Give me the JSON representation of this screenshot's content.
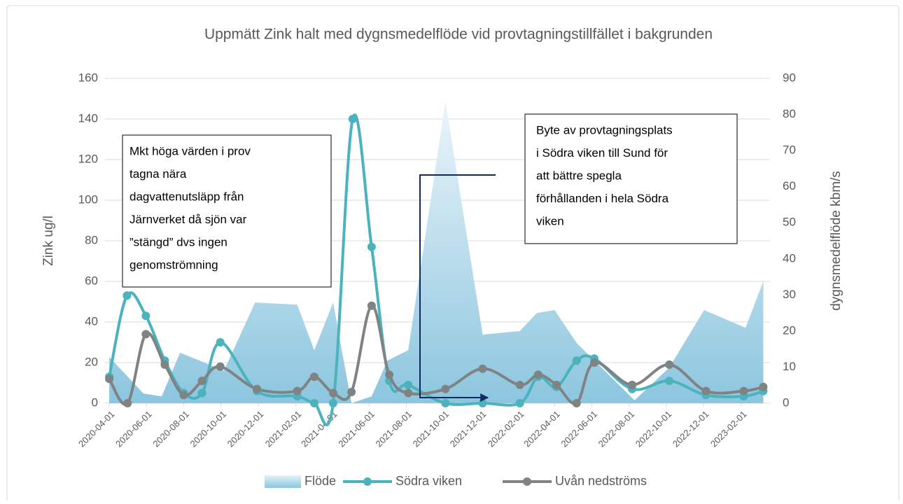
{
  "chart_data": {
    "type": "line",
    "title": "Uppmätt Zink halt med dygnsmedelflöde vid provtagningstillfället i bakgrunden",
    "ylabel": "Zink ug/l",
    "y2label": "dygnsmedelflöde kbm/s",
    "xlim": [
      "2020-03-25",
      "2023-03-20"
    ],
    "xticks": [
      "2020-04-01",
      "2020-06-01",
      "2020-08-01",
      "2020-10-01",
      "2020-12-01",
      "2021-02-01",
      "2021-04-01",
      "2021-06-01",
      "2021-08-01",
      "2021-10-01",
      "2021-12-01",
      "2022-02-01",
      "2022-04-01",
      "2022-06-01",
      "2022-08-01",
      "2022-10-01",
      "2022-12-01",
      "2023-02-01"
    ],
    "ylim": [
      0,
      160
    ],
    "yticks": [
      0,
      20,
      40,
      60,
      80,
      100,
      120,
      140,
      160
    ],
    "y2lim": [
      0,
      90
    ],
    "y2ticks": [
      0,
      10,
      20,
      30,
      40,
      50,
      60,
      70,
      80,
      90
    ],
    "grid": true,
    "legend": "bottom",
    "series": [
      {
        "name": "Flöde",
        "type": "area",
        "axis": "y2",
        "color": "#8cc6df",
        "x": [
          "2020-04-01",
          "2020-05-27",
          "2020-06-26",
          "2020-07-26",
          "2020-08-27",
          "2020-10-06",
          "2020-11-26",
          "2021-02-03",
          "2021-03-03",
          "2021-04-03",
          "2021-05-03",
          "2021-06-05",
          "2021-07-01",
          "2021-08-04",
          "2021-10-04",
          "2021-12-04",
          "2022-02-03",
          "2022-03-03",
          "2022-04-01",
          "2022-05-07",
          "2022-08-10",
          "2022-10-06",
          "2022-12-02",
          "2023-02-08",
          "2023-03-09"
        ],
        "values": [
          12.8,
          2.7,
          1.9,
          14.0,
          11.8,
          9.0,
          27.9,
          27.3,
          14.7,
          27.9,
          0,
          1.9,
          11.8,
          14.7,
          83.6,
          19.0,
          20.0,
          25.0,
          25.8,
          16.7,
          0.8,
          9.9,
          25.8,
          20.9,
          33.8
        ]
      },
      {
        "name": "Södra viken",
        "type": "line",
        "color": "#4bb3bd",
        "x": [
          "2020-04-01",
          "2020-04-30",
          "2020-05-31",
          "2020-07-01",
          "2020-08-01",
          "2020-08-31",
          "2020-09-30",
          "2020-11-29",
          "2021-02-03",
          "2021-03-03",
          "2021-04-03",
          "2021-05-05",
          "2021-06-05",
          "2021-07-04",
          "2021-08-04",
          "2021-10-04",
          "2021-12-04",
          "2022-02-03",
          "2022-03-05",
          "2022-04-04",
          "2022-05-07",
          "2022-06-05",
          "2022-08-06",
          "2022-10-06",
          "2022-12-05",
          "2023-02-05",
          "2023-03-09"
        ],
        "values": [
          13,
          53,
          43,
          21,
          5,
          5,
          30,
          6,
          3.4,
          0,
          0,
          140,
          77,
          11,
          9,
          0,
          0,
          0,
          13,
          8,
          21,
          22,
          7,
          11,
          4,
          3.4,
          6
        ]
      },
      {
        "name": "Uvån nedströms",
        "type": "line",
        "color": "#7f8383",
        "x": [
          "2020-04-01",
          "2020-05-01",
          "2020-05-31",
          "2020-07-01",
          "2020-08-01",
          "2020-08-31",
          "2020-09-30",
          "2020-11-29",
          "2021-02-03",
          "2021-03-03",
          "2021-04-03",
          "2021-05-03",
          "2021-06-05",
          "2021-07-04",
          "2021-08-04",
          "2021-10-04",
          "2021-12-04",
          "2022-02-03",
          "2022-03-05",
          "2022-04-04",
          "2022-05-07",
          "2022-06-05",
          "2022-08-06",
          "2022-10-06",
          "2022-12-05",
          "2023-02-05",
          "2023-03-09"
        ],
        "values": [
          12,
          0,
          34,
          19,
          4,
          11,
          18,
          7,
          6,
          13,
          5,
          5.5,
          48,
          14,
          5,
          7,
          17,
          9,
          14,
          9,
          0,
          20,
          9,
          19,
          6,
          6,
          8
        ]
      }
    ],
    "annotations": [
      {
        "lines": [
          "Mkt höga värden i prov",
          "tagna nära",
          "dagvattenutsläpp från",
          "Järnverket då sjön var",
          "”stängd” dvs ingen",
          "genomströmning"
        ]
      },
      {
        "lines": [
          "Byte av provtagningsplats",
          "i Södra viken till Sund för",
          "att bättre spegla",
          "förhållanden i hela Södra",
          "viken"
        ]
      }
    ]
  }
}
